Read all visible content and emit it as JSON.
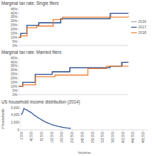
{
  "chart_data": [
    {
      "type": "line",
      "title": "Marginal tax rate: Single filers",
      "line_style": "steps",
      "tick_labels": "y",
      "legend": "right",
      "xlim": [
        0,
        500000
      ],
      "ylim": [
        0,
        45
      ],
      "yticks": [
        {
          "value": 0,
          "label": "0%"
        },
        {
          "value": 5,
          "label": "5%"
        },
        {
          "value": 10,
          "label": "10%"
        },
        {
          "value": 15,
          "label": "15%"
        },
        {
          "value": 20,
          "label": "20%"
        },
        {
          "value": 25,
          "label": "25%"
        },
        {
          "value": 30,
          "label": "30%"
        },
        {
          "value": 35,
          "label": "35%"
        },
        {
          "value": 40,
          "label": "40%"
        },
        {
          "value": 45,
          "label": "45%"
        }
      ],
      "series": [
        {
          "name": "2016",
          "color": "#a5a5a5",
          "x": [
            0,
            9275,
            37650,
            91150,
            190150,
            413350,
            415050,
            500000
          ],
          "values": [
            10,
            15,
            25,
            28,
            33,
            35,
            39.6,
            39.6
          ]
        },
        {
          "name": "2017",
          "color": "#2f5597",
          "x": [
            0,
            9325,
            37950,
            91900,
            191650,
            416700,
            418400,
            500000
          ],
          "values": [
            10,
            15,
            25,
            28,
            33,
            35,
            39.6,
            39.6
          ]
        },
        {
          "name": "2018",
          "color": "#ed7d31",
          "x": [
            0,
            9525,
            38700,
            82500,
            157500,
            200000,
            500000
          ],
          "values": [
            10,
            12,
            22,
            24,
            32,
            35,
            37
          ]
        }
      ]
    },
    {
      "type": "line",
      "title": "Marginal tax rate: Married filers",
      "line_style": "steps",
      "tick_labels": "y",
      "xlim": [
        0,
        500000
      ],
      "ylim": [
        0,
        45
      ],
      "yticks": [
        {
          "value": 0,
          "label": "0%"
        },
        {
          "value": 5,
          "label": "5%"
        },
        {
          "value": 10,
          "label": "10%"
        },
        {
          "value": 15,
          "label": "15%"
        },
        {
          "value": 20,
          "label": "20%"
        },
        {
          "value": 25,
          "label": "25%"
        },
        {
          "value": 30,
          "label": "30%"
        },
        {
          "value": 35,
          "label": "35%"
        },
        {
          "value": 40,
          "label": "40%"
        },
        {
          "value": 45,
          "label": "45%"
        }
      ],
      "series": [
        {
          "color": "#a5a5a5",
          "x": [
            0,
            18550,
            75300,
            151900,
            231450,
            413350,
            466950,
            500000
          ],
          "values": [
            10,
            15,
            25,
            28,
            33,
            35,
            39.6,
            39.6
          ]
        },
        {
          "color": "#2f5597",
          "x": [
            0,
            18650,
            75900,
            153100,
            233350,
            416700,
            470700,
            500000
          ],
          "values": [
            10,
            15,
            25,
            28,
            33,
            35,
            39.6,
            39.6
          ]
        },
        {
          "color": "#ed7d31",
          "x": [
            0,
            19050,
            77400,
            165000,
            315000,
            400000,
            500000
          ],
          "values": [
            10,
            12,
            22,
            24,
            32,
            35,
            35
          ]
        }
      ]
    },
    {
      "type": "line",
      "title": "US household income distribution (2014)",
      "x_label": "Income",
      "y_label": "# households",
      "color": "#2f5597",
      "xlim": [
        0,
        500000
      ],
      "ylim": [
        0,
        6000
      ],
      "xticks": [
        {
          "value": 2500,
          "label": "2,500"
        },
        {
          "value": 42500,
          "label": "42,500"
        },
        {
          "value": 82500,
          "label": "82,500"
        },
        {
          "value": 122500,
          "label": "122,500"
        },
        {
          "value": 162500,
          "label": "162,500"
        },
        {
          "value": 202500,
          "label": "202,500"
        },
        {
          "value": 242500,
          "label": "242,500"
        },
        {
          "value": 282500,
          "label": "282,500"
        },
        {
          "value": 322500,
          "label": "322,500"
        },
        {
          "value": 362500,
          "label": "362,500"
        },
        {
          "value": 402500,
          "label": "402,500"
        },
        {
          "value": 442500,
          "label": "442,500"
        },
        {
          "value": 482500,
          "label": "482,500"
        }
      ],
      "yticks": [
        0,
        {
          "value": 2000,
          "label": "2,000"
        },
        {
          "value": 4000,
          "label": "4,000"
        },
        {
          "value": 6000,
          "label": "6,000"
        }
      ],
      "x": [
        2500,
        7500,
        12500,
        17500,
        22500,
        27500,
        32500,
        37500,
        42500,
        47500,
        52500,
        57500,
        62500,
        67500,
        72500,
        77500,
        82500,
        87500,
        92500,
        97500,
        102500,
        107500,
        112500,
        117500,
        122500,
        127500,
        132500,
        137500,
        142500,
        147500,
        152500,
        157500,
        162500,
        167500,
        172500,
        177500,
        182500,
        187500,
        192500,
        197500
      ],
      "values": [
        4100,
        4700,
        5800,
        5500,
        5500,
        5200,
        5000,
        4800,
        4600,
        4300,
        4000,
        3800,
        3600,
        3300,
        3100,
        2900,
        2700,
        2500,
        2300,
        2100,
        2000,
        1800,
        1700,
        1500,
        1400,
        1300,
        1200,
        1100,
        1000,
        900,
        850,
        780,
        700,
        650,
        600,
        550,
        500,
        460,
        420,
        400
      ]
    }
  ]
}
